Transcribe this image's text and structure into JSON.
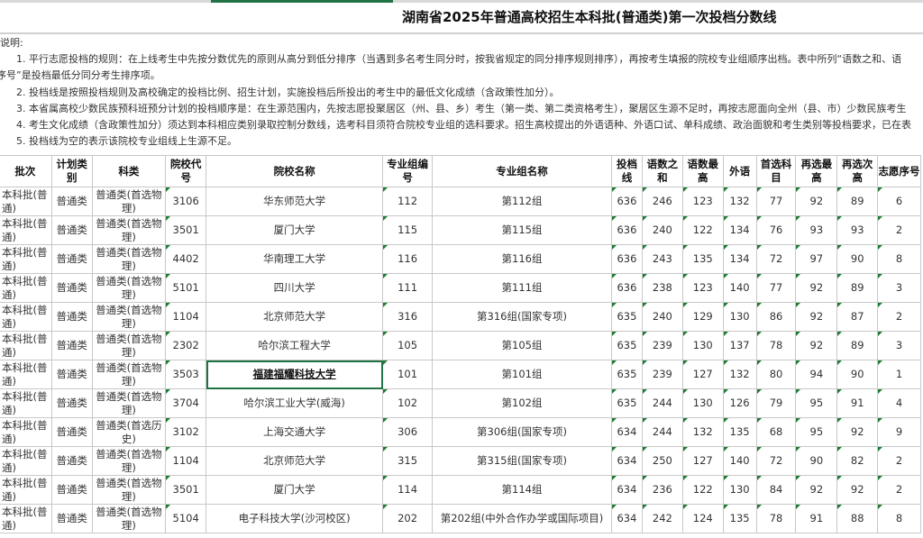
{
  "title": "湖南省2025年普通高校招生本科批(普通类)第一次投档分数线",
  "notes": [
    "说明:",
    "1. 平行志愿投档的规则：在上线考生中先按分数优先的原则从高分到低分排序（当遇到多名考生同分时，按我省规定的同分排序规则排序），再按考生填报的院校专业组顺序出档。表中所列“语数之和、语",
    "序号”是投档最低分同分考生排序项。",
    "2. 投档线是按照投档规则及高校确定的投档比例、招生计划，实施投档后所投出的考生中的最低文化成绩（含政策性加分）。",
    "3. 本省属高校少数民族预科班预分计划的投档顺序是：在生源范围内，先按志愿投聚居区（州、县、乡）考生（第一类、第二类资格考生），聚居区生源不足时，再按志愿面向全州（县、市）少数民族考生",
    "4. 考生文化成绩（含政策性加分）须达到本科相应类别录取控制分数线，选考科目须符合院校专业组的选科要求。招生高校提出的外语语种、外语口试、单科成绩、政治面貌和考生类别等投档要求，已在表",
    "5. 投档线为空的表示该院校专业组线上生源不足。"
  ],
  "headers": [
    "批次",
    "计划类别",
    "科类",
    "院校代号",
    "院校名称",
    "专业组编号",
    "专业组名称",
    "投档线",
    "语数之和",
    "语数最高",
    "外语",
    "首选科目",
    "再选最高",
    "再选次高",
    "志愿序号"
  ],
  "rows": [
    [
      "本科批(普通)",
      "普通类",
      "普通类(首选物理)",
      "3106",
      "华东师范大学",
      "112",
      "第112组",
      "636",
      "246",
      "123",
      "132",
      "77",
      "92",
      "89",
      "6"
    ],
    [
      "本科批(普通)",
      "普通类",
      "普通类(首选物理)",
      "3501",
      "厦门大学",
      "115",
      "第115组",
      "636",
      "240",
      "122",
      "134",
      "76",
      "93",
      "93",
      "2"
    ],
    [
      "本科批(普通)",
      "普通类",
      "普通类(首选物理)",
      "4402",
      "华南理工大学",
      "116",
      "第116组",
      "636",
      "243",
      "135",
      "134",
      "72",
      "97",
      "90",
      "8"
    ],
    [
      "本科批(普通)",
      "普通类",
      "普通类(首选物理)",
      "5101",
      "四川大学",
      "111",
      "第111组",
      "636",
      "238",
      "123",
      "140",
      "77",
      "92",
      "89",
      "3"
    ],
    [
      "本科批(普通)",
      "普通类",
      "普通类(首选物理)",
      "1104",
      "北京师范大学",
      "316",
      "第316组(国家专项)",
      "635",
      "240",
      "129",
      "130",
      "86",
      "92",
      "87",
      "2"
    ],
    [
      "本科批(普通)",
      "普通类",
      "普通类(首选物理)",
      "2302",
      "哈尔滨工程大学",
      "105",
      "第105组",
      "635",
      "239",
      "130",
      "137",
      "78",
      "92",
      "89",
      "3"
    ],
    [
      "本科批(普通)",
      "普通类",
      "普通类(首选物理)",
      "3503",
      "福建福耀科技大学",
      "101",
      "第101组",
      "635",
      "239",
      "127",
      "132",
      "80",
      "94",
      "90",
      "1"
    ],
    [
      "本科批(普通)",
      "普通类",
      "普通类(首选物理)",
      "3704",
      "哈尔滨工业大学(威海)",
      "102",
      "第102组",
      "635",
      "244",
      "130",
      "126",
      "79",
      "95",
      "91",
      "4"
    ],
    [
      "本科批(普通)",
      "普通类",
      "普通类(首选历史)",
      "3102",
      "上海交通大学",
      "306",
      "第306组(国家专项)",
      "634",
      "244",
      "132",
      "135",
      "68",
      "95",
      "92",
      "9"
    ],
    [
      "本科批(普通)",
      "普通类",
      "普通类(首选物理)",
      "1104",
      "北京师范大学",
      "315",
      "第315组(国家专项)",
      "634",
      "250",
      "127",
      "140",
      "72",
      "90",
      "82",
      "2"
    ],
    [
      "本科批(普通)",
      "普通类",
      "普通类(首选物理)",
      "3501",
      "厦门大学",
      "114",
      "第114组",
      "634",
      "236",
      "122",
      "130",
      "84",
      "92",
      "92",
      "2"
    ],
    [
      "本科批(普通)",
      "普通类",
      "普通类(首选物理)",
      "5104",
      "电子科技大学(沙河校区)",
      "202",
      "第202组(中外合作办学或国际项目)",
      "634",
      "242",
      "124",
      "135",
      "78",
      "91",
      "88",
      "8"
    ]
  ],
  "selected_row": 6,
  "colors": {
    "accent": "#217346",
    "triangle": "#1e7b34",
    "grid": "#c8c8c8"
  }
}
